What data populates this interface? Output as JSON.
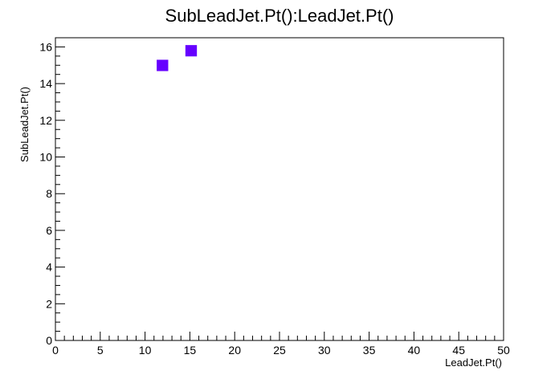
{
  "chart_data": {
    "type": "heatmap",
    "title": "SubLeadJet.Pt():LeadJet.Pt()",
    "xlabel": "LeadJet.Pt()",
    "ylabel": "SubLeadJet.Pt()",
    "xlim": [
      0,
      50
    ],
    "ylim": [
      0,
      16.5
    ],
    "x_ticks": [
      0,
      5,
      10,
      15,
      20,
      25,
      30,
      35,
      40,
      45,
      50
    ],
    "y_ticks": [
      0,
      2,
      4,
      6,
      8,
      10,
      12,
      14,
      16
    ],
    "bin_width_x": 1.25,
    "bin_height_y": 0.6,
    "grid": false,
    "colormap": [
      "#6600ff",
      "#0033ff",
      "#00aaff",
      "#00ffee",
      "#22ff22",
      "#ffee00",
      "#ff9900",
      "#ff1100"
    ],
    "cells": [
      {
        "x": 14.5,
        "y": 15.5,
        "level": 1
      },
      {
        "x": 11.3,
        "y": 14.7,
        "level": 1
      }
    ]
  }
}
